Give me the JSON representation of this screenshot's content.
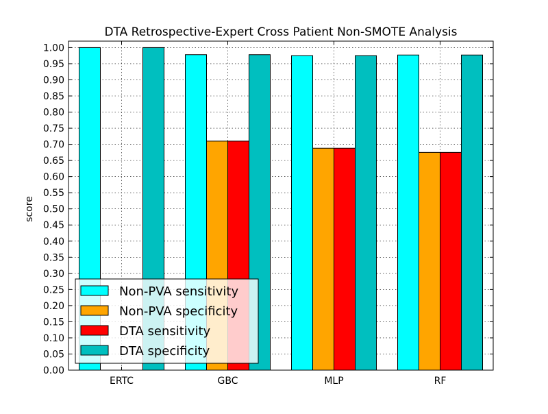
{
  "chart_data": {
    "type": "bar",
    "title": "DTA Retrospective-Expert Cross Patient Non-SMOTE Analysis",
    "xlabel": "",
    "ylabel": "score",
    "ylim": [
      0,
      1.02
    ],
    "yticks": [
      "0.00",
      "0.05",
      "0.10",
      "0.15",
      "0.20",
      "0.25",
      "0.30",
      "0.35",
      "0.40",
      "0.45",
      "0.50",
      "0.55",
      "0.60",
      "0.65",
      "0.70",
      "0.75",
      "0.80",
      "0.85",
      "0.90",
      "0.95",
      "1.00"
    ],
    "grid": true,
    "legend_position": "lower-left",
    "categories": [
      "ERTC",
      "GBC",
      "MLP",
      "RF"
    ],
    "series": [
      {
        "name": "Non-PVA sensitivity",
        "color": "#00ffff",
        "values": [
          1.0,
          0.978,
          0.975,
          0.977
        ]
      },
      {
        "name": "Non-PVA specificity",
        "color": "#ffa500",
        "values": [
          0.0,
          0.71,
          0.688,
          0.675
        ]
      },
      {
        "name": "DTA sensitivity",
        "color": "#ff0000",
        "values": [
          0.0,
          0.71,
          0.688,
          0.675
        ]
      },
      {
        "name": "DTA specificity",
        "color": "#00bfbf",
        "values": [
          1.0,
          0.978,
          0.975,
          0.977
        ]
      }
    ]
  }
}
